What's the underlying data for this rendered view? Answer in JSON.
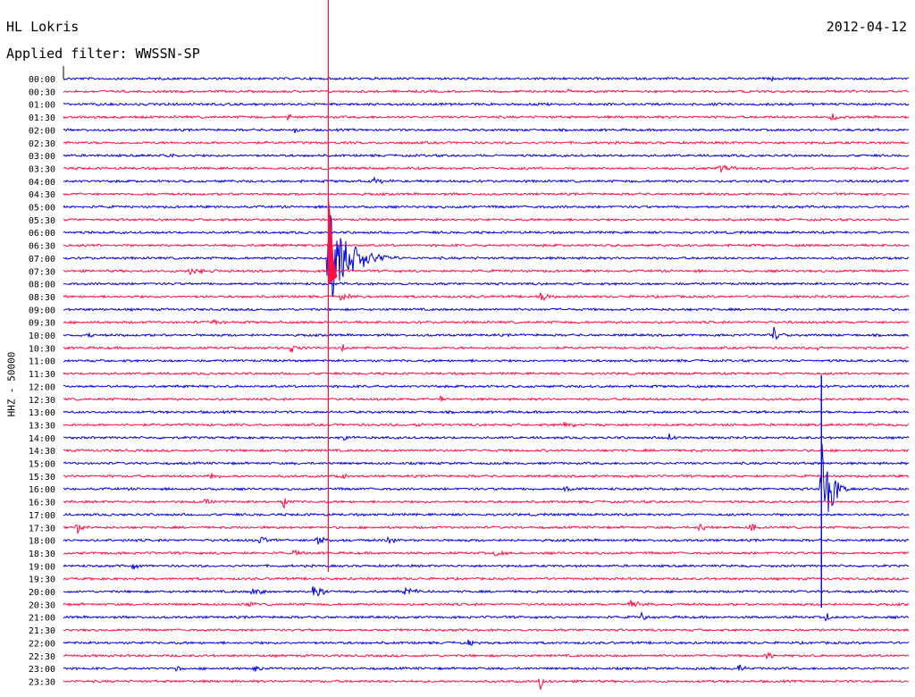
{
  "header": {
    "station": "HL Lokris",
    "date": "2012-04-12",
    "filter": "Applied filter: WWSSN-SP"
  },
  "colors": {
    "even_trace": "#0000dd",
    "odd_trace": "#ff1044",
    "text": "#000000"
  },
  "chart_data": {
    "type": "line",
    "title": "",
    "ylabel": "HHZ - 50000",
    "xlabel": "",
    "grid": false,
    "legend": "none",
    "x_range_minutes": [
      0,
      30
    ],
    "rows": [
      "00:00",
      "00:30",
      "01:00",
      "01:30",
      "02:00",
      "02:30",
      "03:00",
      "03:30",
      "04:00",
      "04:30",
      "05:00",
      "05:30",
      "06:00",
      "06:30",
      "07:00",
      "07:30",
      "08:00",
      "08:30",
      "09:00",
      "09:30",
      "10:00",
      "10:30",
      "11:00",
      "11:30",
      "12:00",
      "12:30",
      "13:00",
      "13:30",
      "14:00",
      "14:30",
      "15:00",
      "15:30",
      "16:00",
      "16:30",
      "17:00",
      "17:30",
      "18:00",
      "18:30",
      "19:00",
      "19:30",
      "20:00",
      "20:30",
      "21:00",
      "21:30",
      "22:00",
      "22:30",
      "23:00",
      "23:30"
    ],
    "events": [
      {
        "row": "00:00",
        "minute": 25.1,
        "amplitude": 3,
        "duration_min": 0.5
      },
      {
        "row": "00:30",
        "minute": 17.9,
        "amplitude": 4,
        "duration_min": 0.3
      },
      {
        "row": "01:30",
        "minute": 8.0,
        "amplitude": 6,
        "duration_min": 0.3
      },
      {
        "row": "01:30",
        "minute": 27.3,
        "amplitude": 9,
        "duration_min": 0.4
      },
      {
        "row": "02:00",
        "minute": 8.2,
        "amplitude": 5,
        "duration_min": 0.4
      },
      {
        "row": "03:00",
        "minute": 3.6,
        "amplitude": 3,
        "duration_min": 0.8
      },
      {
        "row": "03:30",
        "minute": 23.3,
        "amplitude": 4,
        "duration_min": 1.5
      },
      {
        "row": "04:00",
        "minute": 11.0,
        "amplitude": 4,
        "duration_min": 1.2
      },
      {
        "row": "07:00",
        "minute": 9.4,
        "amplitude": 60,
        "duration_min": 2.5
      },
      {
        "row": "07:30",
        "minute": 4.5,
        "amplitude": 4,
        "duration_min": 2.0
      },
      {
        "row": "08:30",
        "minute": 9.8,
        "amplitude": 5,
        "duration_min": 1.0
      },
      {
        "row": "08:30",
        "minute": 16.9,
        "amplitude": 6,
        "duration_min": 1.0
      },
      {
        "row": "09:30",
        "minute": 5.3,
        "amplitude": 5,
        "duration_min": 0.6
      },
      {
        "row": "10:00",
        "minute": 0.9,
        "amplitude": 6,
        "duration_min": 0.4
      },
      {
        "row": "10:00",
        "minute": 25.2,
        "amplitude": 9,
        "duration_min": 0.8
      },
      {
        "row": "10:30",
        "minute": 8.1,
        "amplitude": 8,
        "duration_min": 0.6
      },
      {
        "row": "10:30",
        "minute": 9.9,
        "amplitude": 7,
        "duration_min": 0.3
      },
      {
        "row": "10:30",
        "minute": 26.8,
        "amplitude": 4,
        "duration_min": 0.3
      },
      {
        "row": "12:30",
        "minute": 13.4,
        "amplitude": 4,
        "duration_min": 0.4
      },
      {
        "row": "13:30",
        "minute": 12.5,
        "amplitude": 3,
        "duration_min": 1.5
      },
      {
        "row": "13:30",
        "minute": 17.8,
        "amplitude": 3,
        "duration_min": 1.5
      },
      {
        "row": "14:00",
        "minute": 9.9,
        "amplitude": 3,
        "duration_min": 1.5
      },
      {
        "row": "14:00",
        "minute": 21.5,
        "amplitude": 5,
        "duration_min": 0.6
      },
      {
        "row": "16:00",
        "minute": 26.9,
        "amplitude": 80,
        "duration_min": 1.0
      },
      {
        "row": "15:30",
        "minute": 5.2,
        "amplitude": 6,
        "duration_min": 0.5
      },
      {
        "row": "15:30",
        "minute": 9.9,
        "amplitude": 4,
        "duration_min": 0.6
      },
      {
        "row": "16:00",
        "minute": 17.8,
        "amplitude": 7,
        "duration_min": 0.5
      },
      {
        "row": "16:30",
        "minute": 5.0,
        "amplitude": 5,
        "duration_min": 0.8
      },
      {
        "row": "16:30",
        "minute": 7.8,
        "amplitude": 8,
        "duration_min": 0.5
      },
      {
        "row": "17:30",
        "minute": 0.5,
        "amplitude": 7,
        "duration_min": 0.6
      },
      {
        "row": "17:30",
        "minute": 22.6,
        "amplitude": 7,
        "duration_min": 0.5
      },
      {
        "row": "17:30",
        "minute": 24.4,
        "amplitude": 6,
        "duration_min": 0.6
      },
      {
        "row": "18:00",
        "minute": 7.0,
        "amplitude": 5,
        "duration_min": 1.0
      },
      {
        "row": "18:00",
        "minute": 9.0,
        "amplitude": 7,
        "duration_min": 0.7
      },
      {
        "row": "18:00",
        "minute": 11.5,
        "amplitude": 4,
        "duration_min": 1.0
      },
      {
        "row": "18:30",
        "minute": 8.2,
        "amplitude": 5,
        "duration_min": 0.6
      },
      {
        "row": "18:30",
        "minute": 15.3,
        "amplitude": 5,
        "duration_min": 1.0
      },
      {
        "row": "19:00",
        "minute": 2.5,
        "amplitude": 5,
        "duration_min": 0.4
      },
      {
        "row": "20:00",
        "minute": 6.7,
        "amplitude": 11,
        "duration_min": 0.8
      },
      {
        "row": "20:00",
        "minute": 8.9,
        "amplitude": 12,
        "duration_min": 1.0
      },
      {
        "row": "20:00",
        "minute": 12.1,
        "amplitude": 5,
        "duration_min": 1.5
      },
      {
        "row": "20:30",
        "minute": 6.6,
        "amplitude": 4,
        "duration_min": 0.5
      },
      {
        "row": "20:30",
        "minute": 20.1,
        "amplitude": 4,
        "duration_min": 1.5
      },
      {
        "row": "21:00",
        "minute": 20.5,
        "amplitude": 5,
        "duration_min": 0.6
      },
      {
        "row": "21:00",
        "minute": 27.1,
        "amplitude": 7,
        "duration_min": 0.4
      },
      {
        "row": "22:00",
        "minute": 14.4,
        "amplitude": 6,
        "duration_min": 0.3
      },
      {
        "row": "22:30",
        "minute": 24.9,
        "amplitude": 8,
        "duration_min": 0.5
      },
      {
        "row": "23:00",
        "minute": 4.0,
        "amplitude": 6,
        "duration_min": 0.5
      },
      {
        "row": "23:00",
        "minute": 6.8,
        "amplitude": 8,
        "duration_min": 0.5
      },
      {
        "row": "23:00",
        "minute": 24.0,
        "amplitude": 7,
        "duration_min": 0.5
      },
      {
        "row": "23:30",
        "minute": 16.9,
        "amplitude": 12,
        "duration_min": 0.5
      }
    ]
  }
}
